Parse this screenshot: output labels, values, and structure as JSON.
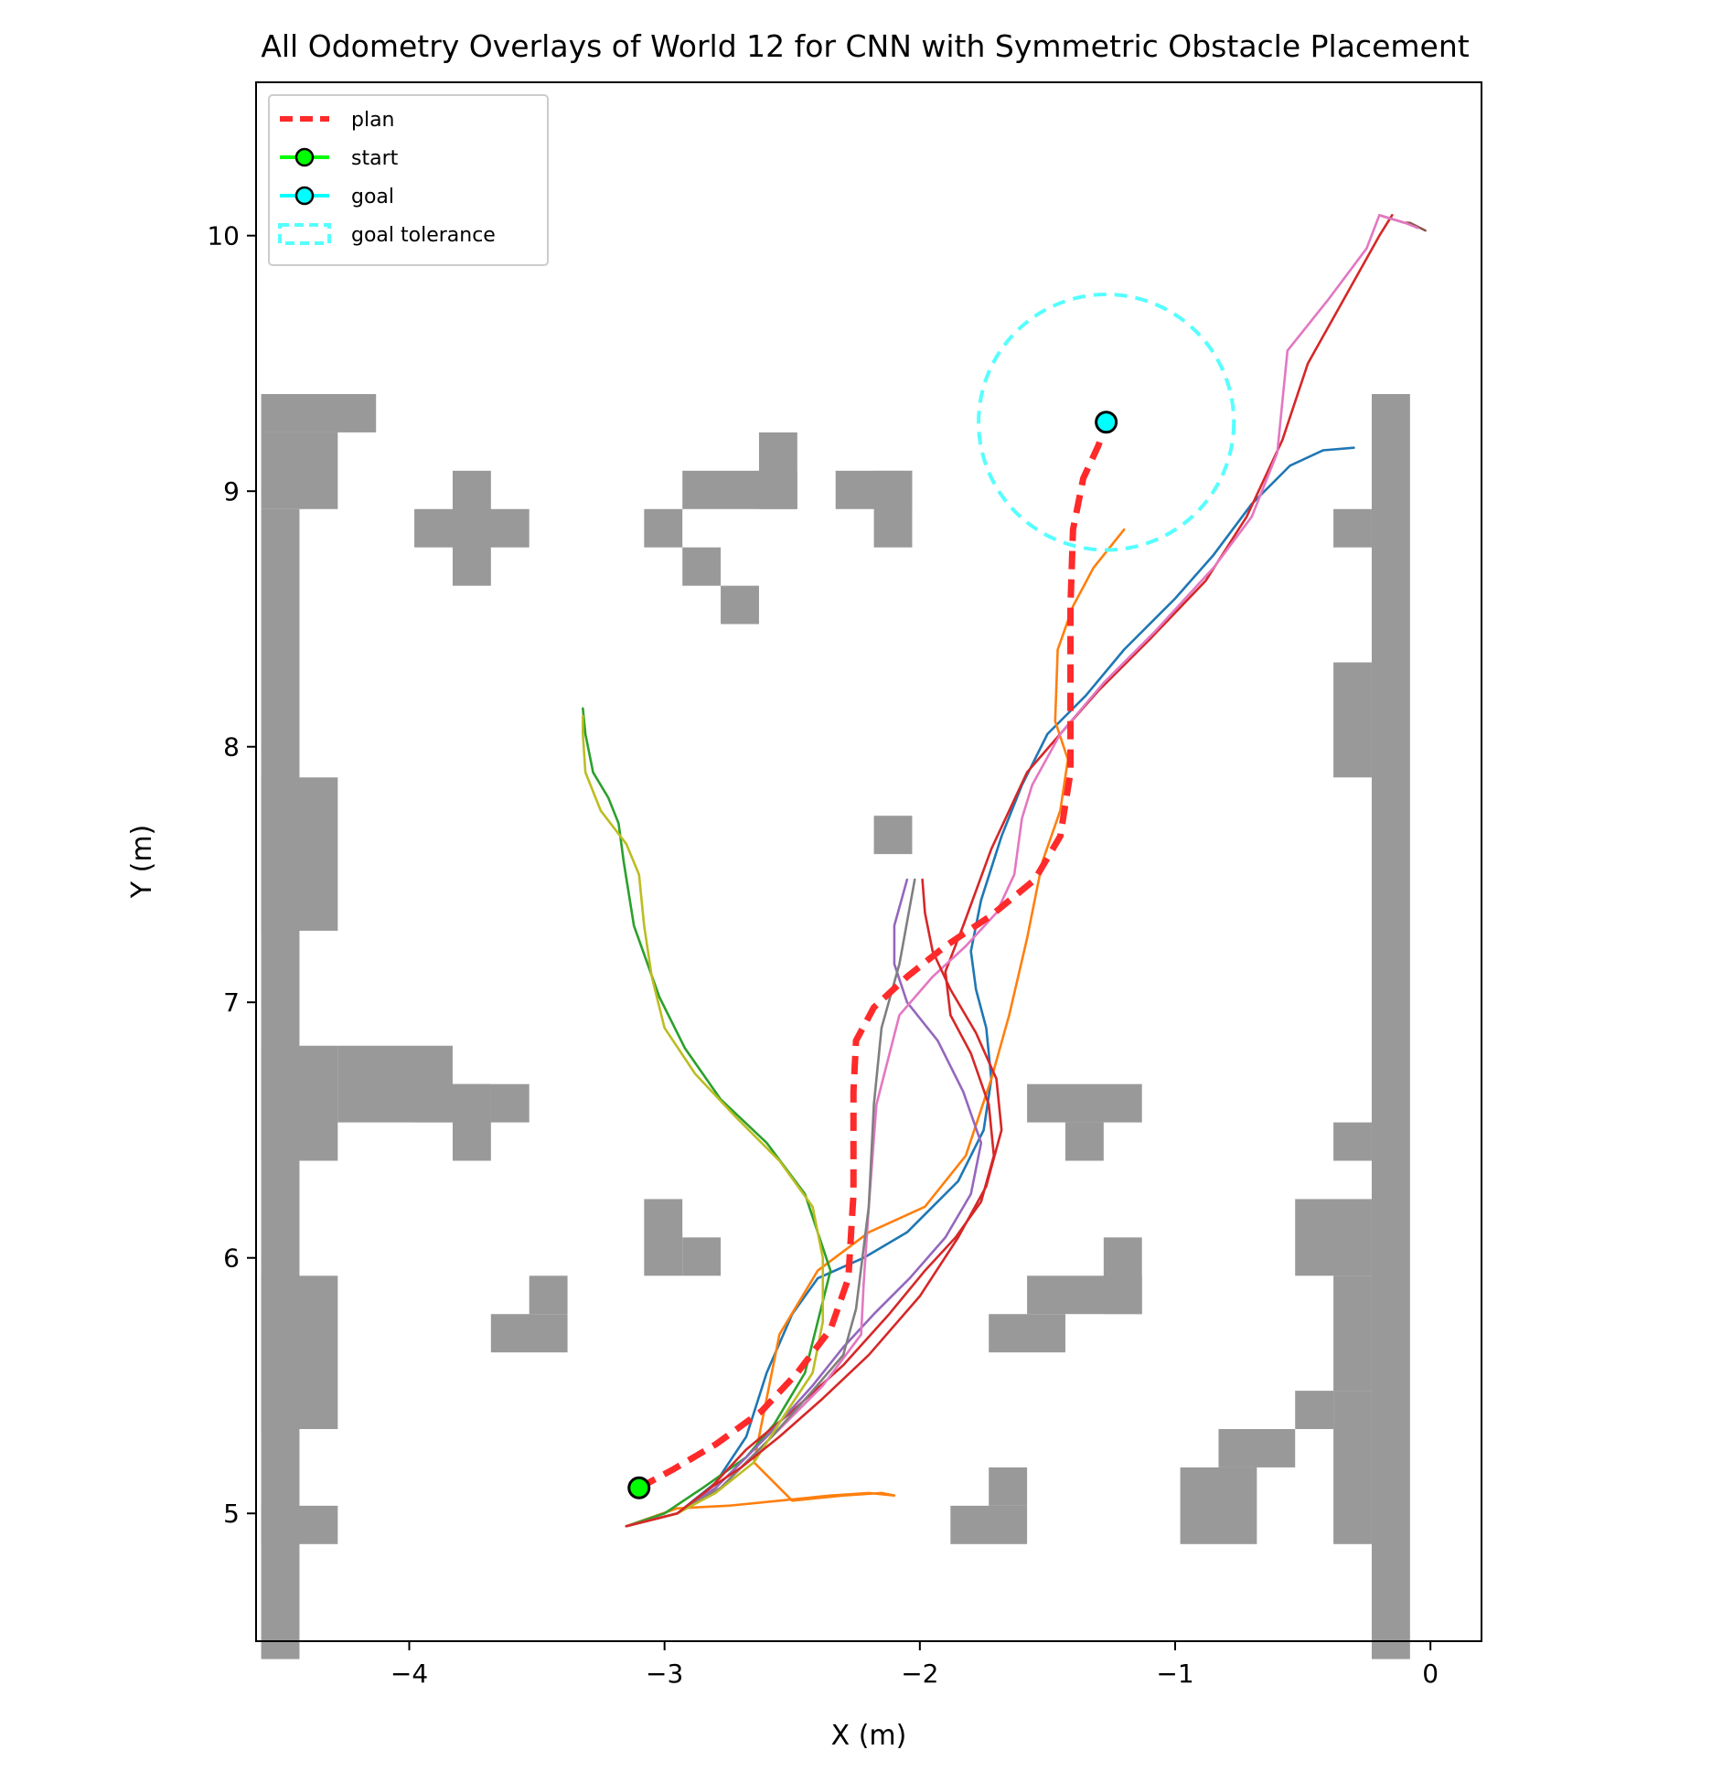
{
  "chart_data": {
    "type": "line",
    "title": "All Odometry Overlays of World 12 for CNN with Symmetric Obstacle Placement",
    "xlabel": "X (m)",
    "ylabel": "Y (m)",
    "xlim": [
      -4.6,
      0.2
    ],
    "ylim": [
      4.5,
      10.6
    ],
    "x_ticks": [
      -4,
      -3,
      -2,
      -1,
      0
    ],
    "x_tick_labels": [
      "−4",
      "−3",
      "−2",
      "−1",
      "0"
    ],
    "y_ticks": [
      5,
      6,
      7,
      8,
      9,
      10
    ],
    "y_tick_labels": [
      "5",
      "6",
      "7",
      "8",
      "9",
      "10"
    ],
    "grid": false,
    "legend": {
      "placement": "upper-left",
      "entries": [
        {
          "label": "plan",
          "style": "dashed-line",
          "color": "#ff2a2a"
        },
        {
          "label": "start",
          "style": "line-marker",
          "color": "#00ff00"
        },
        {
          "label": "goal",
          "style": "line-marker",
          "color": "#00ffff"
        },
        {
          "label": "goal tolerance",
          "style": "dashed-box",
          "color": "#55ffff"
        }
      ]
    },
    "obstacle_color": "#999999",
    "obstacle_cell_size": 0.15,
    "obstacles": [
      [
        -4.58,
        9.23,
        0.45,
        0.15
      ],
      [
        -4.58,
        8.93,
        0.3,
        0.3
      ],
      [
        -4.58,
        4.43,
        0.15,
        4.5
      ],
      [
        -4.58,
        7.28,
        0.3,
        0.6
      ],
      [
        -4.58,
        6.38,
        0.3,
        0.45
      ],
      [
        -4.28,
        6.53,
        0.45,
        0.3
      ],
      [
        -3.98,
        6.53,
        0.3,
        0.15
      ],
      [
        -3.83,
        6.38,
        0.15,
        0.3
      ],
      [
        -3.68,
        6.53,
        0.15,
        0.15
      ],
      [
        -4.58,
        5.33,
        0.3,
        0.6
      ],
      [
        -4.58,
        4.88,
        0.3,
        0.15
      ],
      [
        -3.98,
        8.78,
        0.45,
        0.15
      ],
      [
        -3.83,
        8.63,
        0.15,
        0.45
      ],
      [
        -3.08,
        8.78,
        0.15,
        0.15
      ],
      [
        -2.93,
        8.93,
        0.45,
        0.15
      ],
      [
        -2.63,
        8.93,
        0.15,
        0.3
      ],
      [
        -2.93,
        8.63,
        0.15,
        0.15
      ],
      [
        -2.78,
        8.48,
        0.15,
        0.15
      ],
      [
        -2.33,
        8.93,
        0.3,
        0.15
      ],
      [
        -2.18,
        8.78,
        0.15,
        0.3
      ],
      [
        -2.18,
        7.58,
        0.15,
        0.15
      ],
      [
        -3.08,
        5.93,
        0.15,
        0.3
      ],
      [
        -2.93,
        5.93,
        0.15,
        0.15
      ],
      [
        -3.68,
        5.63,
        0.3,
        0.15
      ],
      [
        -3.53,
        5.78,
        0.15,
        0.15
      ],
      [
        -1.58,
        6.53,
        0.45,
        0.15
      ],
      [
        -1.43,
        6.38,
        0.15,
        0.15
      ],
      [
        -1.73,
        5.63,
        0.3,
        0.15
      ],
      [
        -1.58,
        5.78,
        0.45,
        0.15
      ],
      [
        -1.28,
        5.78,
        0.15,
        0.3
      ],
      [
        -1.88,
        4.88,
        0.3,
        0.15
      ],
      [
        -1.73,
        5.03,
        0.15,
        0.15
      ],
      [
        -0.98,
        4.88,
        0.3,
        0.3
      ],
      [
        -0.83,
        5.18,
        0.3,
        0.15
      ],
      [
        -0.53,
        5.33,
        0.15,
        0.15
      ],
      [
        -0.23,
        4.43,
        0.15,
        4.95
      ],
      [
        -0.38,
        8.78,
        0.15,
        0.15
      ],
      [
        -0.38,
        7.88,
        0.15,
        0.45
      ],
      [
        -0.38,
        6.38,
        0.15,
        0.15
      ],
      [
        -0.53,
        5.93,
        0.3,
        0.3
      ],
      [
        -0.38,
        5.48,
        0.15,
        0.45
      ],
      [
        -0.38,
        4.88,
        0.15,
        0.6
      ]
    ],
    "plan": {
      "name": "plan",
      "color": "#ff2a2a",
      "x": [
        -3.1,
        -2.97,
        -2.8,
        -2.62,
        -2.48,
        -2.35,
        -2.28,
        -2.26,
        -2.26,
        -2.25,
        -2.18,
        -2.05,
        -1.9,
        -1.72,
        -1.55,
        -1.45,
        -1.41,
        -1.41,
        -1.41,
        -1.4,
        -1.36,
        -1.3,
        -1.27
      ],
      "y": [
        5.1,
        5.17,
        5.27,
        5.4,
        5.55,
        5.72,
        5.92,
        6.25,
        6.65,
        6.85,
        6.98,
        7.1,
        7.22,
        7.34,
        7.48,
        7.65,
        7.9,
        8.2,
        8.55,
        8.85,
        9.05,
        9.18,
        9.27
      ]
    },
    "start": {
      "x": -3.1,
      "y": 5.1,
      "color": "#00ff00"
    },
    "goal": {
      "x": -1.27,
      "y": 9.27,
      "color": "#00ffff"
    },
    "goal_tolerance": {
      "radius": 0.5,
      "color": "#55ffff"
    },
    "series": [
      {
        "color": "#1f77b4",
        "x": [
          -3.15,
          -2.95,
          -2.8,
          -2.68,
          -2.6,
          -2.5,
          -2.4,
          -2.22,
          -2.05,
          -1.85,
          -1.75,
          -1.72,
          -1.74,
          -1.78,
          -1.8,
          -1.76,
          -1.68,
          -1.6,
          -1.5,
          -1.35,
          -1.2,
          -1.0,
          -0.85,
          -0.7,
          -0.55,
          -0.42,
          -0.3
        ],
        "y": [
          4.95,
          5.0,
          5.12,
          5.3,
          5.55,
          5.78,
          5.92,
          6.0,
          6.1,
          6.3,
          6.5,
          6.7,
          6.9,
          7.05,
          7.2,
          7.4,
          7.65,
          7.85,
          8.05,
          8.2,
          8.38,
          8.58,
          8.75,
          8.95,
          9.1,
          9.16,
          9.17
        ]
      },
      {
        "color": "#ff7f0e",
        "x": [
          -3.15,
          -2.95,
          -2.75,
          -2.55,
          -2.35,
          -2.2,
          -2.1,
          -2.15,
          -2.3,
          -2.5,
          -2.65,
          -2.55,
          -2.4,
          -2.2,
          -1.98,
          -1.82,
          -1.72,
          -1.65,
          -1.58,
          -1.52,
          -1.45,
          -1.42,
          -1.47,
          -1.46,
          -1.4,
          -1.32,
          -1.2
        ],
        "y": [
          4.95,
          5.02,
          5.03,
          5.05,
          5.07,
          5.08,
          5.07,
          5.08,
          5.07,
          5.05,
          5.2,
          5.7,
          5.95,
          6.1,
          6.2,
          6.4,
          6.7,
          6.95,
          7.25,
          7.55,
          7.75,
          7.95,
          8.1,
          8.38,
          8.55,
          8.7,
          8.85
        ]
      },
      {
        "color": "#2ca02c",
        "x": [
          -3.15,
          -3.0,
          -2.85,
          -2.68,
          -2.57,
          -2.45,
          -2.35,
          -2.45,
          -2.6,
          -2.78,
          -2.92,
          -3.02,
          -3.12,
          -3.16,
          -3.18,
          -3.22,
          -3.28,
          -3.31,
          -3.32
        ],
        "y": [
          4.95,
          5.0,
          5.1,
          5.22,
          5.35,
          5.55,
          5.95,
          6.25,
          6.45,
          6.62,
          6.82,
          7.02,
          7.3,
          7.55,
          7.7,
          7.8,
          7.9,
          8.05,
          8.15
        ]
      },
      {
        "color": "#d62728",
        "x": [
          -3.15,
          -2.95,
          -2.82,
          -2.68,
          -2.5,
          -2.3,
          -2.12,
          -1.98,
          -1.86,
          -1.76,
          -1.71,
          -1.73,
          -1.8,
          -1.88,
          -1.9,
          -1.83,
          -1.72,
          -1.58,
          -1.45,
          -1.3,
          -1.1,
          -0.88,
          -0.72,
          -0.58,
          -0.48,
          -0.34,
          -0.2,
          -0.15
        ],
        "y": [
          4.95,
          5.0,
          5.1,
          5.25,
          5.4,
          5.58,
          5.78,
          5.95,
          6.08,
          6.22,
          6.4,
          6.6,
          6.8,
          6.95,
          7.12,
          7.3,
          7.6,
          7.9,
          8.05,
          8.22,
          8.42,
          8.65,
          8.9,
          9.2,
          9.5,
          9.75,
          10.0,
          10.08
        ]
      },
      {
        "color": "#9467bd",
        "x": [
          -3.15,
          -2.95,
          -2.8,
          -2.6,
          -2.42,
          -2.3,
          -2.18,
          -2.04,
          -1.9,
          -1.8,
          -1.76,
          -1.83,
          -1.93,
          -2.05,
          -2.1,
          -2.1,
          -2.05
        ],
        "y": [
          4.95,
          5.0,
          5.1,
          5.3,
          5.5,
          5.65,
          5.78,
          5.92,
          6.08,
          6.25,
          6.45,
          6.65,
          6.85,
          7.0,
          7.15,
          7.3,
          7.48
        ]
      },
      {
        "color": "#8c564b",
        "x": [
          -0.2,
          -0.1,
          -0.08,
          -0.02
        ],
        "y": [
          10.08,
          10.05,
          10.05,
          10.02
        ]
      },
      {
        "color": "#e377c2",
        "x": [
          -3.15,
          -2.95,
          -2.78,
          -2.58,
          -2.38,
          -2.23,
          -2.22,
          -2.2,
          -2.17,
          -2.08,
          -1.95,
          -1.82,
          -1.7,
          -1.63,
          -1.6,
          -1.56,
          -1.45,
          -1.28,
          -1.08,
          -0.85,
          -0.7,
          -0.6,
          -0.56,
          -0.4,
          -0.25,
          -0.2,
          -0.1,
          -0.05
        ],
        "y": [
          4.95,
          5.0,
          5.1,
          5.3,
          5.5,
          5.7,
          5.9,
          6.2,
          6.6,
          6.95,
          7.1,
          7.22,
          7.35,
          7.5,
          7.72,
          7.85,
          8.05,
          8.25,
          8.45,
          8.7,
          8.9,
          9.15,
          9.55,
          9.75,
          9.95,
          10.08,
          10.05,
          10.03
        ]
      },
      {
        "color": "#7f7f7f",
        "x": [
          -3.15,
          -2.95,
          -2.78,
          -2.58,
          -2.42,
          -2.3,
          -2.25,
          -2.2,
          -2.18,
          -2.15,
          -2.08,
          -2.02
        ],
        "y": [
          4.95,
          5.0,
          5.1,
          5.3,
          5.48,
          5.62,
          5.8,
          6.2,
          6.6,
          6.9,
          7.15,
          7.48
        ]
      },
      {
        "color": "#bcbd22",
        "x": [
          -3.15,
          -2.95,
          -2.8,
          -2.65,
          -2.52,
          -2.42,
          -2.38,
          -2.38,
          -2.42,
          -2.55,
          -2.72,
          -2.88,
          -3.0,
          -3.05,
          -3.08,
          -3.1,
          -3.15,
          -3.25,
          -3.31,
          -3.32,
          -3.32
        ],
        "y": [
          4.95,
          5.0,
          5.08,
          5.2,
          5.4,
          5.55,
          5.75,
          6.0,
          6.2,
          6.38,
          6.55,
          6.72,
          6.9,
          7.1,
          7.3,
          7.5,
          7.62,
          7.75,
          7.9,
          8.05,
          8.12
        ]
      },
      {
        "color": "#d62728",
        "x": [
          -3.15,
          -2.95,
          -2.82,
          -2.7,
          -2.55,
          -2.38,
          -2.2,
          -2.0,
          -1.85,
          -1.74,
          -1.68,
          -1.7,
          -1.78,
          -1.88,
          -1.95,
          -1.98,
          -1.99
        ],
        "y": [
          4.95,
          5.0,
          5.1,
          5.18,
          5.3,
          5.45,
          5.62,
          5.85,
          6.08,
          6.28,
          6.5,
          6.7,
          6.88,
          7.05,
          7.2,
          7.35,
          7.48
        ]
      }
    ]
  }
}
